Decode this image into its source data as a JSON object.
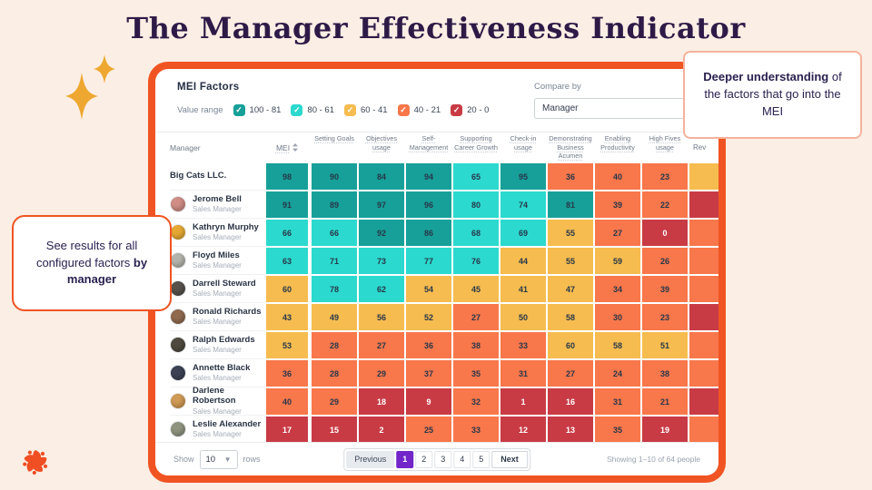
{
  "title": "The Manager Effectiveness Indicator",
  "colors": {
    "page_bg": "#fbeee4",
    "frame": "#f05423",
    "active_page": "#7226c9",
    "title_text": "#2e1a47",
    "sparkle": "#eea831",
    "logo": "#f04e23"
  },
  "callouts": {
    "left": {
      "text": "See results for all configured factors ",
      "bold": "by manager"
    },
    "right": {
      "bold": "Deeper understanding",
      "text": " of the factors that go into the MEI"
    }
  },
  "panel": {
    "header": {
      "title": "MEI Factors",
      "value_range_label": "Value range",
      "ranges": [
        {
          "label": "100 - 81",
          "color": "#17a099"
        },
        {
          "label": "80 - 61",
          "color": "#2cd9ce"
        },
        {
          "label": "60 - 41",
          "color": "#f6bc4f"
        },
        {
          "label": "40 - 21",
          "color": "#f8774b"
        },
        {
          "label": "20 - 0",
          "color": "#c83b45"
        }
      ],
      "compare_by": {
        "label": "Compare by",
        "value": "Manager"
      }
    },
    "table": {
      "columns": [
        "Manager",
        "MEI",
        "Setting Goals",
        "Objectives usage",
        "Self-Management",
        "Supporting Career Growth",
        "Check-in usage",
        "Demonstrating Business Acumen",
        "Enabling Productivity",
        "High Fives usage",
        "Rev"
      ],
      "bands": {
        "teal": "#17a099",
        "cyan": "#2cd9ce",
        "yellow": "#f6bc4f",
        "orange": "#f8774b",
        "red": "#c83b45"
      },
      "rows": [
        {
          "name": "Big Cats LLC.",
          "role": "",
          "company": true,
          "avatar": "",
          "mei": 98,
          "values": [
            90,
            84,
            94,
            65,
            95,
            36,
            40,
            23
          ],
          "partial_band": "yellow"
        },
        {
          "name": "Jerome Bell",
          "role": "Sales Manager",
          "company": false,
          "avatar": "#cf8d85",
          "mei": 91,
          "values": [
            89,
            97,
            96,
            80,
            74,
            81,
            39,
            22
          ],
          "partial_band": "red"
        },
        {
          "name": "Kathryn Murphy",
          "role": "Sales Manager",
          "company": false,
          "avatar": "#e5a832",
          "mei": 66,
          "values": [
            66,
            92,
            86,
            68,
            69,
            55,
            27,
            0
          ],
          "partial_band": "orange"
        },
        {
          "name": "Floyd Miles",
          "role": "Sales Manager",
          "company": false,
          "avatar": "#b3b3ab",
          "mei": 63,
          "values": [
            71,
            73,
            77,
            76,
            44,
            55,
            59,
            26
          ],
          "partial_band": "orange"
        },
        {
          "name": "Darrell Steward",
          "role": "Sales Manager",
          "company": false,
          "avatar": "#57514b",
          "mei": 60,
          "values": [
            78,
            62,
            54,
            45,
            41,
            47,
            34,
            39
          ],
          "partial_band": "orange"
        },
        {
          "name": "Ronald Richards",
          "role": "Sales Manager",
          "company": false,
          "avatar": "#8f6a4f",
          "mei": 43,
          "values": [
            49,
            56,
            52,
            27,
            50,
            58,
            30,
            23
          ],
          "partial_band": "red"
        },
        {
          "name": "Ralph Edwards",
          "role": "Sales Manager",
          "company": false,
          "avatar": "#4f4a3f",
          "mei": 53,
          "values": [
            28,
            27,
            36,
            38,
            33,
            60,
            58,
            51
          ],
          "partial_band": "orange"
        },
        {
          "name": "Annette Black",
          "role": "Sales Manager",
          "company": false,
          "avatar": "#3c4254",
          "mei": 36,
          "values": [
            28,
            29,
            37,
            35,
            31,
            27,
            24,
            38
          ],
          "partial_band": "orange"
        },
        {
          "name": "Darlene Robertson",
          "role": "Sales Manager",
          "company": false,
          "avatar": "#cf9a55",
          "mei": 40,
          "values": [
            29,
            18,
            9,
            32,
            1,
            16,
            31,
            21
          ],
          "partial_band": "red"
        },
        {
          "name": "Leslie Alexander",
          "role": "Sales Manager",
          "company": false,
          "avatar": "#8f9480",
          "mei": 17,
          "values": [
            15,
            2,
            25,
            33,
            12,
            13,
            35,
            19
          ],
          "partial_band": "orange"
        }
      ]
    },
    "footer": {
      "show_label": "Show",
      "rows_per_page": "10",
      "rows_label": "rows",
      "pagination": {
        "prev": "Previous",
        "pages": [
          "1",
          "2",
          "3",
          "4",
          "5"
        ],
        "active": "1",
        "next": "Next"
      },
      "summary": "Showing 1–10 of 64 people"
    }
  }
}
